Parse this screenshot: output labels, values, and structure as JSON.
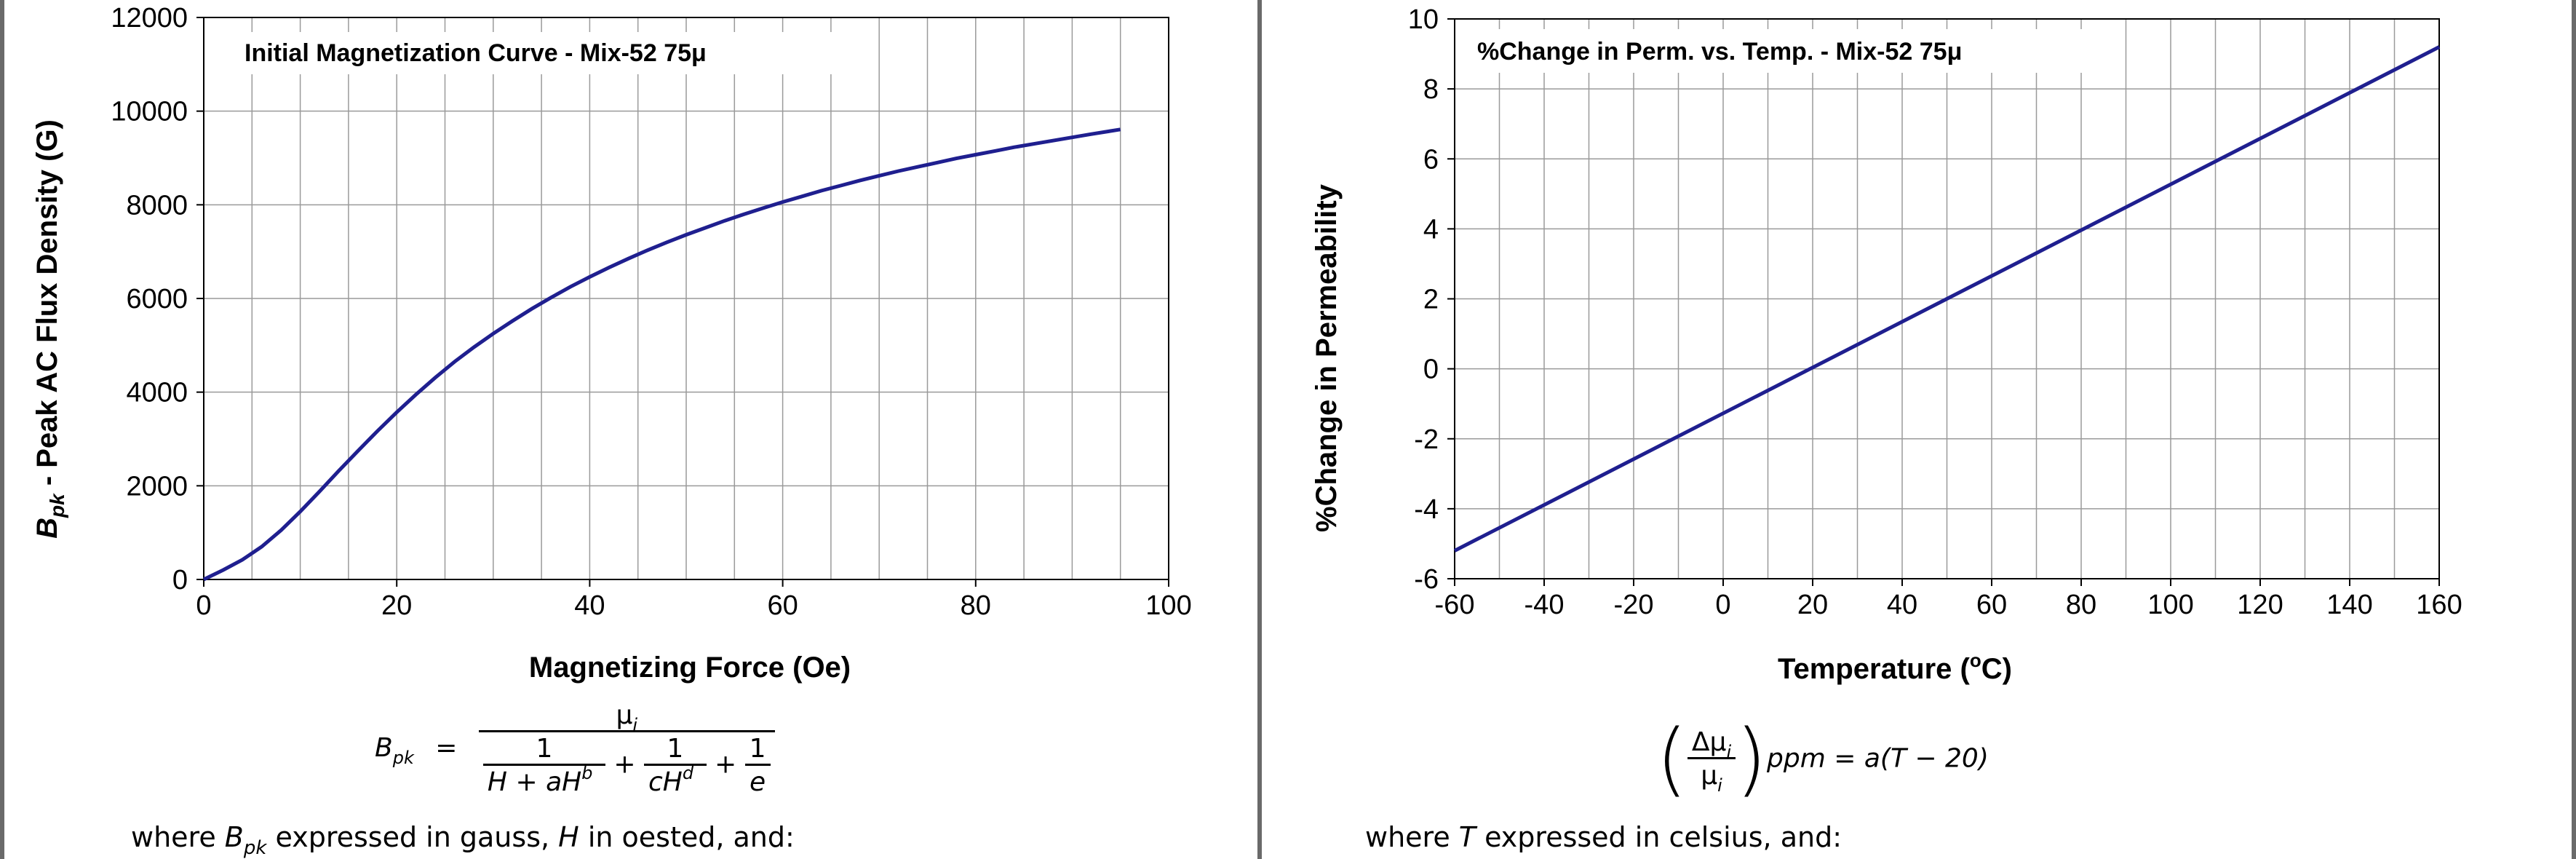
{
  "chart_data": [
    {
      "type": "line",
      "title": "Initial Magnetization Curve - Mix-52  75μ",
      "xlabel": "Magnetizing Force (Oe)",
      "ylabel_main": "B",
      "ylabel_sub": "pk",
      "ylabel_rest": " - Peak AC Flux Density (G)",
      "xlim": [
        0,
        100
      ],
      "ylim": [
        0,
        12000
      ],
      "x_ticks": [
        0,
        20,
        40,
        60,
        80,
        100
      ],
      "y_ticks": [
        0,
        2000,
        4000,
        6000,
        8000,
        10000,
        12000
      ],
      "x_tick_labels": [
        "0",
        "20",
        "40",
        "60",
        "80",
        "100"
      ],
      "y_tick_labels": [
        "0",
        "2000",
        "4000",
        "6000",
        "8000",
        "10000",
        "12000"
      ],
      "grid": true,
      "line_color": "#1f1f8f",
      "series": [
        {
          "x": [
            0,
            2,
            4,
            6,
            8,
            10,
            12,
            14,
            16,
            18,
            20,
            22,
            24,
            26,
            28,
            30,
            32,
            34,
            36,
            38,
            40,
            42,
            44,
            46,
            48,
            50,
            52,
            54,
            56,
            58,
            60,
            62,
            64,
            66,
            68,
            70,
            72,
            74,
            76,
            78,
            80,
            82,
            84,
            86,
            88,
            90,
            92,
            95
          ],
          "y": [
            0,
            200,
            420,
            700,
            1050,
            1450,
            1880,
            2320,
            2750,
            3170,
            3570,
            3950,
            4310,
            4650,
            4960,
            5250,
            5520,
            5780,
            6020,
            6250,
            6460,
            6660,
            6850,
            7030,
            7200,
            7360,
            7510,
            7660,
            7800,
            7930,
            8060,
            8180,
            8300,
            8410,
            8520,
            8620,
            8720,
            8810,
            8900,
            8990,
            9070,
            9150,
            9230,
            9300,
            9370,
            9440,
            9510,
            9610
          ]
        }
      ]
    },
    {
      "type": "line",
      "title": "%Change in Perm. vs. Temp. - Mix-52  75μ",
      "xlabel_main": "Temperature (",
      "xlabel_sup": "o",
      "xlabel_end": "C)",
      "ylabel": "%Change in Permeability",
      "xlim": [
        -60,
        160
      ],
      "ylim": [
        -6,
        10
      ],
      "x_ticks": [
        -60,
        -40,
        -20,
        0,
        20,
        40,
        60,
        80,
        100,
        120,
        140,
        160
      ],
      "y_ticks": [
        -6,
        -4,
        -2,
        0,
        2,
        4,
        6,
        8,
        10
      ],
      "x_tick_labels": [
        "-60",
        "-40",
        "-20",
        "0",
        "20",
        "40",
        "60",
        "80",
        "100",
        "120",
        "140",
        "160"
      ],
      "y_tick_labels": [
        "-6",
        "-4",
        "-2",
        "0",
        "2",
        "4",
        "6",
        "8",
        "10"
      ],
      "grid": true,
      "line_color": "#1f1f8f",
      "series": [
        {
          "x": [
            -60,
            160
          ],
          "y": [
            -5.2,
            9.2
          ]
        }
      ]
    }
  ],
  "equations": {
    "left": {
      "lhs_main": "B",
      "lhs_sub": "pk",
      "equals": "=",
      "numerator": "μ",
      "numerator_sub": "i",
      "t1_num": "1",
      "t1_den_a": "H",
      "t1_den_plus": "+",
      "t1_den_b": "aH",
      "t1_den_sup": "b",
      "plus": "+",
      "t2_num": "1",
      "t2_den": "cH",
      "t2_den_sup": "d",
      "t3_num": "1",
      "t3_den": "e"
    },
    "right": {
      "num": "Δμ",
      "num_sub": "i",
      "den": "μ",
      "den_sub": "i",
      "rest": "ppm  = a(T − 20)"
    }
  },
  "notes": {
    "left_pre": "where ",
    "left_var": "B",
    "left_sub": "pk",
    "left_post": " expressed in gauss, ",
    "left_var2": "H",
    "left_post2": " in oested, and:",
    "right_pre": "where ",
    "right_var": "T",
    "right_post": " expressed in celsius, and:"
  }
}
